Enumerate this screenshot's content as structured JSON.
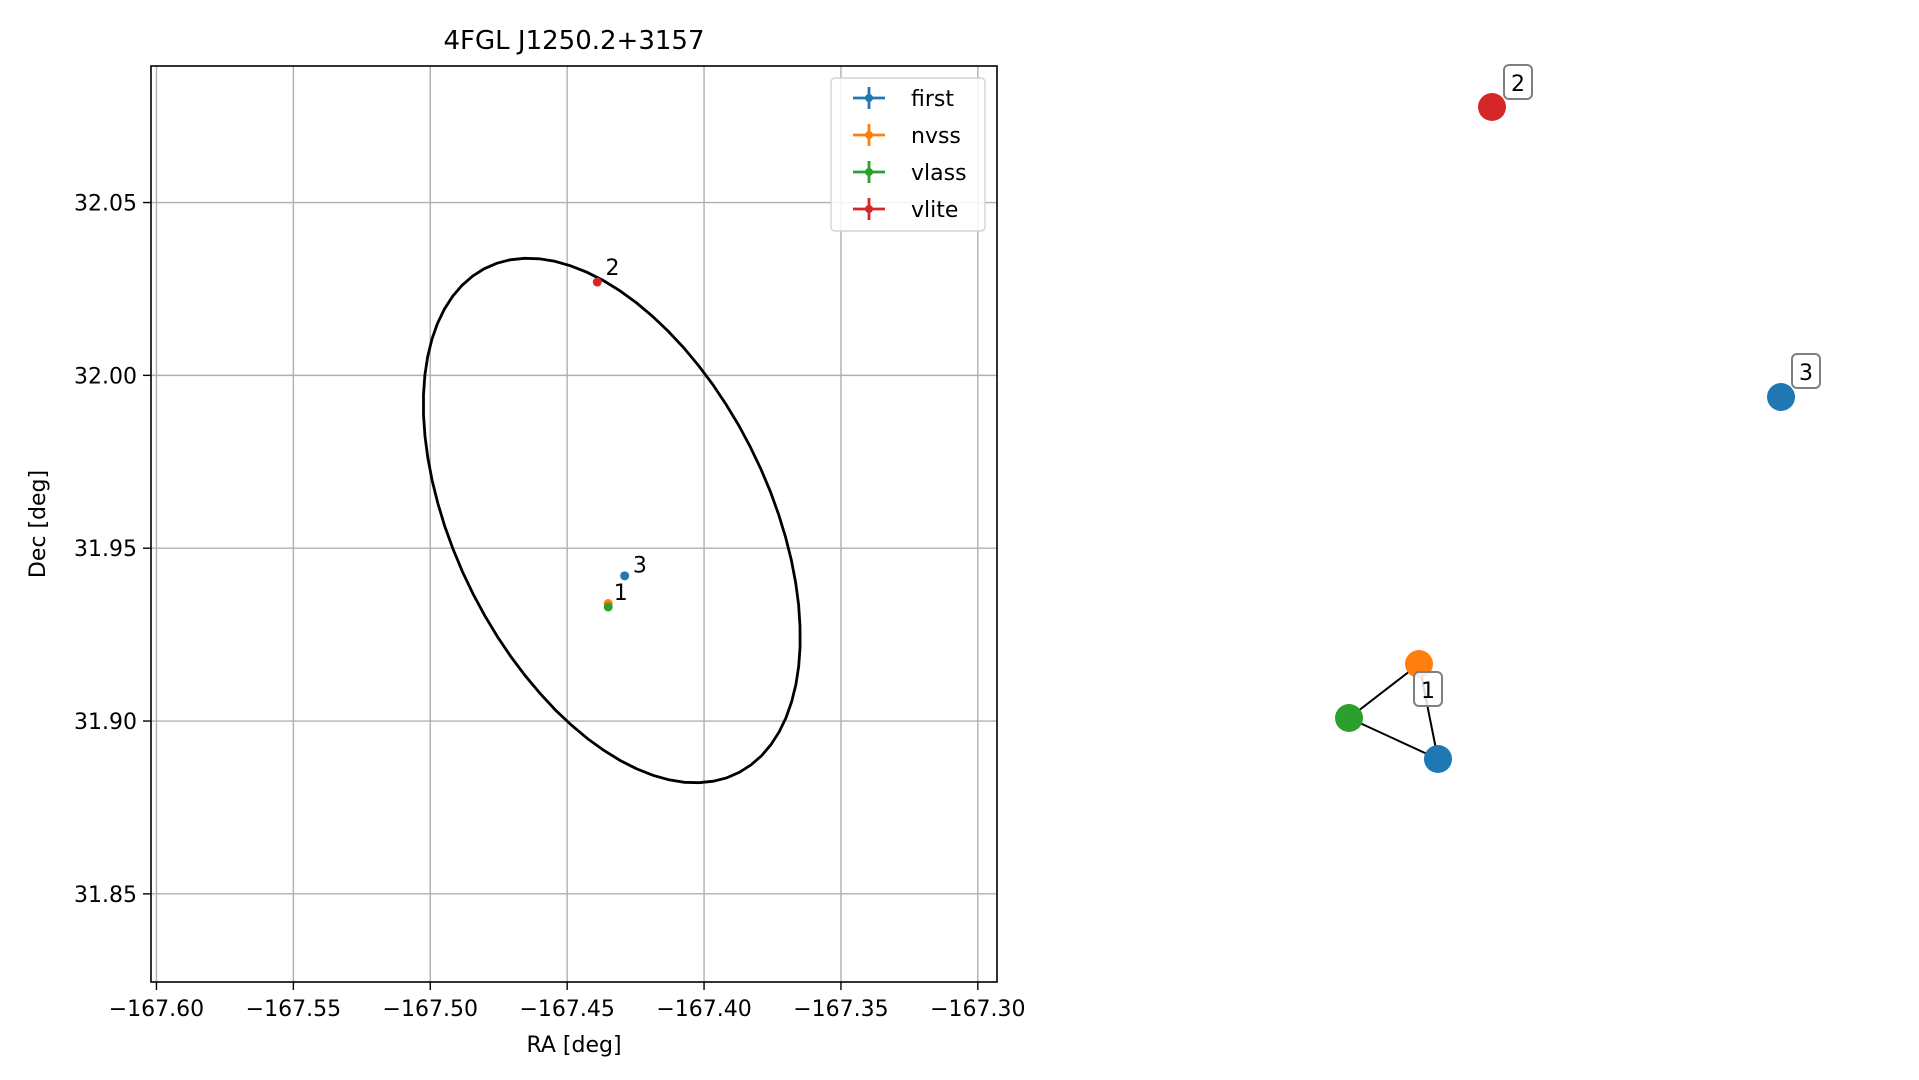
{
  "chart_data": [
    {
      "type": "scatter",
      "title": "4FGL J1250.2+3157",
      "xlabel": "RA [deg]",
      "ylabel": "Dec [deg]",
      "xlim": [
        -167.602,
        -167.293
      ],
      "ylim": [
        31.8245,
        32.0895
      ],
      "xticks": [
        -167.6,
        -167.55,
        -167.5,
        -167.45,
        -167.4,
        -167.35,
        -167.3
      ],
      "xtick_labels": [
        "−167.60",
        "−167.55",
        "−167.50",
        "−167.45",
        "−167.40",
        "−167.35",
        "−167.30"
      ],
      "yticks": [
        31.85,
        31.9,
        31.95,
        32.0,
        32.05
      ],
      "ytick_labels": [
        "31.85",
        "31.90",
        "31.95",
        "32.00",
        "32.05"
      ],
      "grid": true,
      "legend_position": "top-right",
      "series": [
        {
          "name": "first",
          "color": "#1f77b4",
          "points": [
            [
              -167.429,
              31.942
            ]
          ]
        },
        {
          "name": "nvss",
          "color": "#ff7f0e",
          "points": [
            [
              -167.435,
              31.934
            ]
          ]
        },
        {
          "name": "vlass",
          "color": "#2ca02c",
          "points": [
            [
              -167.435,
              31.933
            ]
          ]
        },
        {
          "name": "vlite",
          "color": "#d62728",
          "points": [
            [
              -167.439,
              32.027
            ]
          ]
        }
      ],
      "point_labels": [
        {
          "text": "1",
          "x": -167.433,
          "y": 31.935
        },
        {
          "text": "2",
          "x": -167.436,
          "y": 32.029
        },
        {
          "text": "3",
          "x": -167.426,
          "y": 31.943
        }
      ],
      "error_ellipse": {
        "color": "#000000",
        "center": [
          -167.4337,
          31.958
        ],
        "semi_axis_a_deg": 0.0873,
        "semi_axis_b_deg": 0.0536,
        "angle_deg": -51.2
      }
    },
    {
      "type": "network",
      "nodes": [
        {
          "id": "n-vlite",
          "color": "#d62728",
          "label": "2"
        },
        {
          "id": "n-first-3",
          "color": "#1f77b4",
          "label": "3"
        },
        {
          "id": "n-nvss",
          "color": "#ff7f0e",
          "label": "1"
        },
        {
          "id": "n-vlass",
          "color": "#2ca02c",
          "label": ""
        },
        {
          "id": "n-first-1",
          "color": "#1f77b4",
          "label": ""
        }
      ],
      "edges": [
        [
          "n-nvss",
          "n-vlass"
        ],
        [
          "n-vlass",
          "n-first-1"
        ],
        [
          "n-nvss",
          "n-first-1"
        ]
      ]
    }
  ]
}
